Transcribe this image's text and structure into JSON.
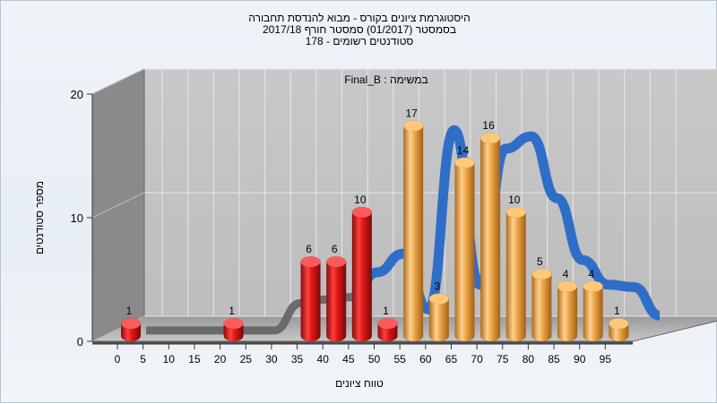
{
  "title_lines": [
    "היסטוגרמת ציונים בקורס - מבוא להנדסת תחבורה",
    "בסמסטר  (01/2017)  סמסטר חורף  2017/18",
    "סטודנטים רשומים - 178"
  ],
  "chart_data": {
    "type": "bar",
    "annotation": "במשימה : Final_B",
    "xlabel": "טווח ציונים",
    "ylabel": "מספר סטודנטים",
    "categories": [
      "0",
      "5",
      "10",
      "15",
      "20",
      "25",
      "30",
      "35",
      "40",
      "45",
      "50",
      "55",
      "60",
      "65",
      "70",
      "75",
      "80",
      "85",
      "90",
      "95"
    ],
    "values": [
      1,
      0,
      0,
      0,
      1,
      0,
      0,
      6,
      6,
      10,
      1,
      17,
      3,
      14,
      16,
      10,
      5,
      4,
      4,
      1
    ],
    "bar_colors": [
      "red",
      "red",
      "red",
      "red",
      "red",
      "red",
      "red",
      "red",
      "red",
      "red",
      "red",
      "orange",
      "orange",
      "orange",
      "orange",
      "orange",
      "orange",
      "orange",
      "orange",
      "orange"
    ],
    "ylim": [
      0,
      20
    ],
    "yticks": [
      0,
      10,
      20
    ],
    "grid": true,
    "trend_line": [
      0.3,
      0.3,
      0.3,
      0.3,
      0.3,
      0.3,
      2.5,
      2.8,
      3.0,
      5.0,
      6.5,
      2.0,
      16.5,
      4.0,
      15.0,
      16.0,
      11.0,
      6.0,
      4.0,
      3.8,
      1.5
    ],
    "colors": {
      "red": "#e01818",
      "orange": "#e8a040",
      "trend_gray": "#6a6a6a",
      "trend_blue": "#2f6ec8",
      "wall": "#a8a8a8",
      "back": "#c4c4c4",
      "side": "#8a8a8a"
    }
  }
}
